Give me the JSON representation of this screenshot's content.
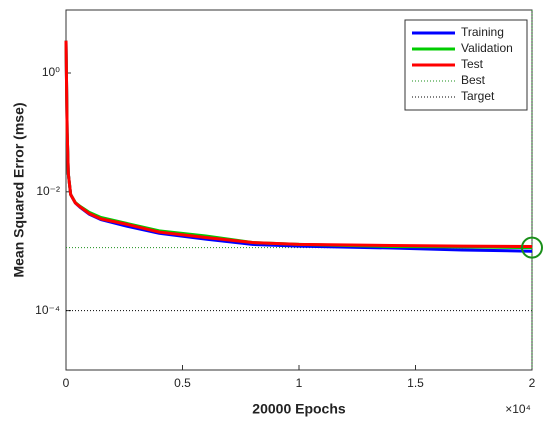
{
  "chart_data": {
    "type": "line",
    "xlabel": "20000 Epochs",
    "ylabel": "Mean Squared Error (mse)",
    "x_multiplier": "×10⁴",
    "log_y": true,
    "x": [
      0,
      50,
      100,
      200,
      400,
      600,
      1000,
      1500,
      2500,
      4000,
      6000,
      8000,
      10000,
      14000,
      17000,
      20000
    ],
    "series": [
      {
        "name": "Training",
        "color": "#0000ff",
        "values": [
          3.5,
          0.1,
          0.02,
          0.009,
          0.0065,
          0.0055,
          0.0042,
          0.0034,
          0.0027,
          0.002,
          0.0016,
          0.0013,
          0.00122,
          0.00113,
          0.00105,
          0.001
        ]
      },
      {
        "name": "Validation",
        "color": "#00cc00",
        "values": [
          3.5,
          0.1,
          0.02,
          0.009,
          0.0066,
          0.0057,
          0.0045,
          0.0037,
          0.003,
          0.0022,
          0.0018,
          0.0014,
          0.0013,
          0.0012,
          0.00118,
          0.00115
        ]
      },
      {
        "name": "Test",
        "color": "#ff0000",
        "values": [
          3.5,
          0.1,
          0.02,
          0.009,
          0.0065,
          0.0056,
          0.0043,
          0.0035,
          0.0029,
          0.0021,
          0.0017,
          0.0014,
          0.0013,
          0.00125,
          0.00122,
          0.0012
        ]
      }
    ],
    "best": {
      "name": "Best",
      "x": 20000,
      "value": 0.00115,
      "color": "#1a8f1a"
    },
    "target": {
      "name": "Target",
      "value": 0.0001,
      "color": "#000000"
    },
    "xlim": [
      0,
      20000
    ],
    "xticks": [
      {
        "value": 0,
        "label": "0"
      },
      {
        "value": 5000,
        "label": "0.5"
      },
      {
        "value": 10000,
        "label": "1"
      },
      {
        "value": 15000,
        "label": "1.5"
      },
      {
        "value": 20000,
        "label": "2"
      }
    ],
    "ylim": [
      1e-05,
      11.5
    ],
    "yticks": [
      {
        "value": 0.0001,
        "label": "10⁻⁴"
      },
      {
        "value": 0.01,
        "label": "10⁻²"
      },
      {
        "value": 1,
        "label": "10⁰"
      }
    ],
    "legend": "upper right"
  }
}
